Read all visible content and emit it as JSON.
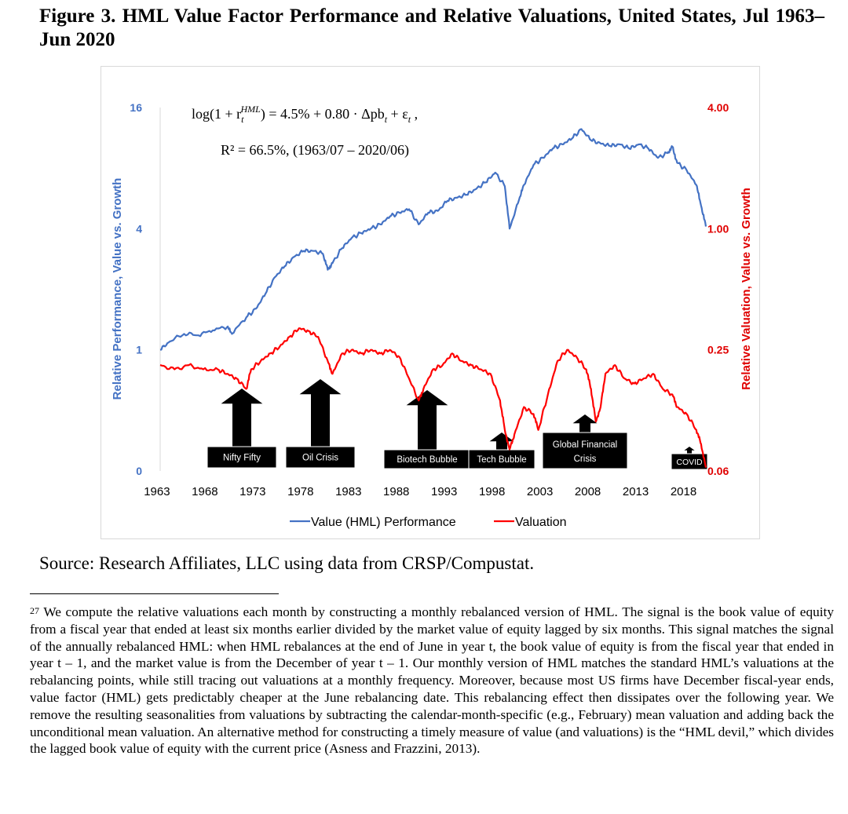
{
  "figure": {
    "title": "Figure 3. HML Value Factor Performance and Relative Valuations, United States, Jul 1963–Jun 2020"
  },
  "chart_data": {
    "type": "line",
    "x_tick_labels": [
      "1963",
      "1968",
      "1973",
      "1978",
      "1983",
      "1988",
      "1993",
      "1998",
      "2003",
      "2008",
      "2013",
      "2018"
    ],
    "xlim": [
      1963.5,
      2020.5
    ],
    "left_axis": {
      "label": "Relative Performance, Value vs. Growth",
      "scale": "log",
      "ticks": [
        "16",
        "4",
        "1",
        "0"
      ],
      "color": "#4472c4"
    },
    "right_axis": {
      "label": "Relative Valuation, Value vs. Growth",
      "scale": "log",
      "ticks": [
        "4.00",
        "1.00",
        "0.25",
        "0.06"
      ],
      "color": "#e00000"
    },
    "equation": {
      "line1": "log(1 + r",
      "line1_sup": "HML",
      "line1_sub": "t",
      "line1_rest": ") = 4.5% + 0.80 · Δpb",
      "line1_sub2": "t",
      "line1_end": " + ε",
      "line1_sub3": "t",
      "line1_tail": " ,",
      "line2": "R² = 66.5%, (1963/07 – 2020/06)"
    },
    "series": [
      {
        "name": "Value (HML) Performance",
        "color": "#4472c4",
        "axis": "left",
        "points": [
          [
            1963.5,
            1.0
          ],
          [
            1964.5,
            1.1
          ],
          [
            1966,
            1.2
          ],
          [
            1967.5,
            1.18
          ],
          [
            1969,
            1.25
          ],
          [
            1970.5,
            1.3
          ],
          [
            1971,
            1.2
          ],
          [
            1972.5,
            1.45
          ],
          [
            1973.5,
            1.6
          ],
          [
            1974.5,
            1.9
          ],
          [
            1975.5,
            2.3
          ],
          [
            1976.5,
            2.6
          ],
          [
            1977.5,
            2.9
          ],
          [
            1978.5,
            3.1
          ],
          [
            1979.5,
            3.1
          ],
          [
            1980.5,
            3.0
          ],
          [
            1981,
            2.5
          ],
          [
            1981.5,
            2.7
          ],
          [
            1982.5,
            3.2
          ],
          [
            1983.5,
            3.6
          ],
          [
            1984.5,
            3.8
          ],
          [
            1985.5,
            4.0
          ],
          [
            1986.5,
            4.2
          ],
          [
            1987.5,
            4.6
          ],
          [
            1988.5,
            4.8
          ],
          [
            1989.5,
            5.0
          ],
          [
            1990.5,
            4.2
          ],
          [
            1991.5,
            4.8
          ],
          [
            1992.5,
            4.9
          ],
          [
            1993.5,
            5.5
          ],
          [
            1994.5,
            5.7
          ],
          [
            1995.5,
            5.9
          ],
          [
            1996.5,
            6.3
          ],
          [
            1997.5,
            6.8
          ],
          [
            1998.5,
            7.6
          ],
          [
            1999.5,
            6.5
          ],
          [
            2000,
            4.0
          ],
          [
            2001,
            5.6
          ],
          [
            2001.5,
            6.6
          ],
          [
            2002.5,
            8.3
          ],
          [
            2003.5,
            9.0
          ],
          [
            2004.5,
            10.0
          ],
          [
            2005.5,
            10.5
          ],
          [
            2006.5,
            11.2
          ],
          [
            2007.5,
            12.5
          ],
          [
            2008.5,
            11.0
          ],
          [
            2009.5,
            10.6
          ],
          [
            2010.5,
            10.3
          ],
          [
            2011.5,
            10.5
          ],
          [
            2012.5,
            10.0
          ],
          [
            2013.5,
            10.5
          ],
          [
            2014.5,
            10.0
          ],
          [
            2015.5,
            9.0
          ],
          [
            2016.5,
            9.5
          ],
          [
            2017,
            10.2
          ],
          [
            2017.5,
            8.5
          ],
          [
            2018.5,
            7.8
          ],
          [
            2019.5,
            6.6
          ],
          [
            2020,
            5.2
          ],
          [
            2020.5,
            4.1
          ]
        ]
      },
      {
        "name": "Valuation",
        "color": "#ff0000",
        "axis": "right",
        "points": [
          [
            1963.5,
            0.21
          ],
          [
            1965,
            0.2
          ],
          [
            1966.5,
            0.21
          ],
          [
            1968,
            0.2
          ],
          [
            1969.5,
            0.2
          ],
          [
            1970.5,
            0.19
          ],
          [
            1971.5,
            0.18
          ],
          [
            1972.5,
            0.16
          ],
          [
            1973,
            0.2
          ],
          [
            1974,
            0.22
          ],
          [
            1975,
            0.24
          ],
          [
            1976,
            0.26
          ],
          [
            1977,
            0.29
          ],
          [
            1978,
            0.32
          ],
          [
            1979,
            0.31
          ],
          [
            1980,
            0.29
          ],
          [
            1981,
            0.22
          ],
          [
            1981.5,
            0.19
          ],
          [
            1982.5,
            0.24
          ],
          [
            1983.5,
            0.25
          ],
          [
            1984.5,
            0.24
          ],
          [
            1985.5,
            0.25
          ],
          [
            1986.5,
            0.24
          ],
          [
            1987.5,
            0.25
          ],
          [
            1988.5,
            0.23
          ],
          [
            1989.5,
            0.18
          ],
          [
            1990.5,
            0.14
          ],
          [
            1991,
            0.16
          ],
          [
            1992,
            0.2
          ],
          [
            1993,
            0.21
          ],
          [
            1994,
            0.24
          ],
          [
            1995,
            0.22
          ],
          [
            1996,
            0.21
          ],
          [
            1997,
            0.2
          ],
          [
            1998,
            0.19
          ],
          [
            1999,
            0.14
          ],
          [
            1999.5,
            0.1
          ],
          [
            2000,
            0.08
          ],
          [
            2000.5,
            0.095
          ],
          [
            2001.5,
            0.13
          ],
          [
            2002.5,
            0.12
          ],
          [
            2003,
            0.1
          ],
          [
            2004,
            0.15
          ],
          [
            2005,
            0.22
          ],
          [
            2006,
            0.25
          ],
          [
            2007,
            0.23
          ],
          [
            2008,
            0.2
          ],
          [
            2008.5,
            0.16
          ],
          [
            2009,
            0.11
          ],
          [
            2009.5,
            0.13
          ],
          [
            2010,
            0.19
          ],
          [
            2011,
            0.21
          ],
          [
            2012,
            0.18
          ],
          [
            2013,
            0.17
          ],
          [
            2014,
            0.18
          ],
          [
            2015,
            0.19
          ],
          [
            2016,
            0.16
          ],
          [
            2017,
            0.15
          ],
          [
            2017.5,
            0.13
          ],
          [
            2018.5,
            0.12
          ],
          [
            2019.5,
            0.1
          ],
          [
            2020,
            0.085
          ],
          [
            2020.5,
            0.065
          ]
        ]
      }
    ],
    "annotations": [
      {
        "label": "Nifty Fifty",
        "year": 1972.5
      },
      {
        "label": "Oil Crisis",
        "year": 1980.5
      },
      {
        "label": "Biotech Bubble",
        "year": 1990.5
      },
      {
        "label": "Tech Bubble",
        "year": 2000.5
      },
      {
        "label": "Global Financial Crisis",
        "year": 2009
      },
      {
        "label": "COVID",
        "year": 2020
      }
    ],
    "legend": {
      "placement": "bottom"
    }
  },
  "source": "Source: Research Affiliates, LLC using data from CRSP/Compustat.",
  "footnote": {
    "number": "27",
    "text": "We compute the relative valuations each month by constructing a monthly rebalanced version of HML. The signal is the book value of equity from a fiscal year that ended at least six months earlier divided by the market value of equity lagged by six months. This signal matches the signal of the annually rebalanced HML: when HML rebalances at the end of June in year t, the book value of equity is from the fiscal year that ended in year t – 1, and the market value is from the December of year t – 1. Our monthly version of HML matches the standard HML’s valuations at the rebalancing points, while still tracing out valuations at a monthly frequency. Moreover, because most US firms have December fiscal-year ends, value factor (HML) gets predictably cheaper at the June rebalancing date. This rebalancing effect then dissipates over the following year. We remove the resulting seasonalities from valuations by subtracting the calendar-month-specific (e.g., February) mean valuation and adding back the unconditional mean valuation. An alternative method for constructing a timely measure of value (and valuations) is the “HML devil,” which divides the lagged book value of equity with the current price (Asness and Frazzini, 2013)."
  }
}
